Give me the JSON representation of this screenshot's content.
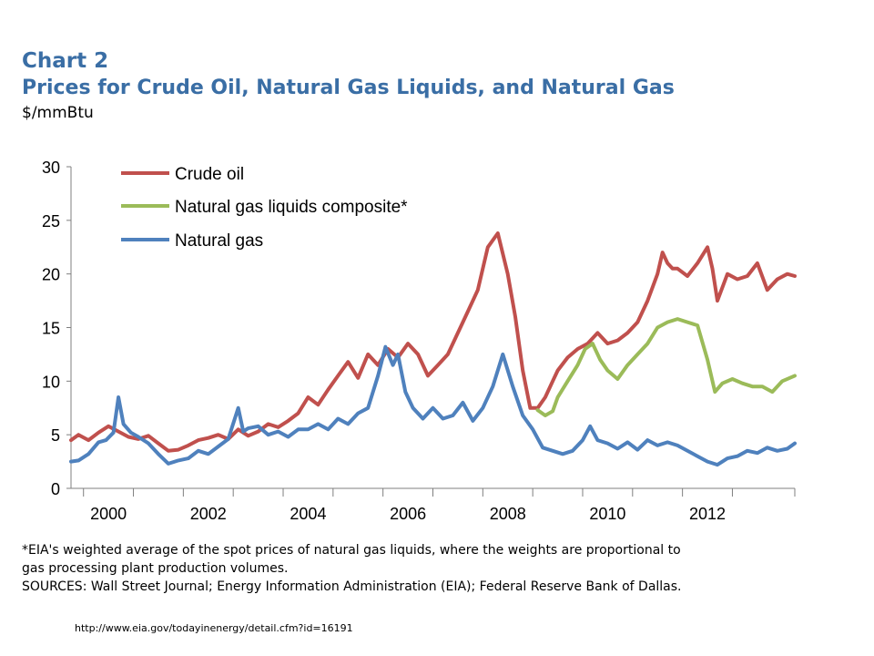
{
  "header": {
    "label": "Chart 2",
    "title": "Prices for Crude Oil, Natural Gas Liquids, and Natural Gas",
    "unit": "$/mmBtu"
  },
  "notes": {
    "footnote_line1": "*EIA's weighted average of the spot prices of natural gas liquids, where the weights are proportional to",
    "footnote_line2": "gas processing plant production volumes.",
    "sources": "SOURCES: Wall Street Journal; Energy Information Administration (EIA); Federal Reserve Bank of Dallas."
  },
  "url": "http://www.eia.gov/todayinenergy/detail.cfm?id=16191",
  "chart_data": {
    "type": "line",
    "title": "Prices for Crude Oil, Natural Gas Liquids, and Natural Gas",
    "ylabel": "$/mmBtu",
    "xlim": [
      1999.25,
      2013.75
    ],
    "ylim": [
      0,
      30
    ],
    "yticks": [
      0,
      5,
      10,
      15,
      20,
      25,
      30
    ],
    "xtick_labels": [
      "2000",
      "2002",
      "2004",
      "2006",
      "2008",
      "2010",
      "2012"
    ],
    "grid": false,
    "legend_position": "top-left",
    "series": [
      {
        "name": "Crude oil",
        "color": "#c0504d",
        "x": [
          1999.25,
          1999.4,
          1999.6,
          1999.8,
          2000.0,
          2000.2,
          2000.4,
          2000.6,
          2000.8,
          2001.0,
          2001.2,
          2001.4,
          2001.6,
          2001.8,
          2002.0,
          2002.2,
          2002.4,
          2002.6,
          2002.8,
          2003.0,
          2003.2,
          2003.4,
          2003.6,
          2003.8,
          2004.0,
          2004.2,
          2004.4,
          2004.6,
          2004.8,
          2005.0,
          2005.2,
          2005.4,
          2005.6,
          2005.8,
          2006.0,
          2006.2,
          2006.4,
          2006.6,
          2006.8,
          2007.0,
          2007.2,
          2007.4,
          2007.6,
          2007.8,
          2008.0,
          2008.15,
          2008.3,
          2008.45,
          2008.6,
          2008.75,
          2008.9,
          2009.0,
          2009.2,
          2009.4,
          2009.6,
          2009.8,
          2010.0,
          2010.2,
          2010.4,
          2010.6,
          2010.8,
          2011.0,
          2011.1,
          2011.2,
          2011.3,
          2011.4,
          2011.6,
          2011.8,
          2012.0,
          2012.1,
          2012.2,
          2012.4,
          2012.6,
          2012.8,
          2013.0,
          2013.2,
          2013.4,
          2013.6,
          2013.75
        ],
        "values": [
          4.5,
          5.0,
          4.5,
          5.2,
          5.8,
          5.3,
          4.8,
          4.6,
          4.9,
          4.2,
          3.5,
          3.6,
          4.0,
          4.5,
          4.7,
          5.0,
          4.6,
          5.5,
          4.9,
          5.3,
          6.0,
          5.7,
          6.3,
          7.0,
          8.5,
          7.8,
          9.2,
          10.5,
          11.8,
          10.3,
          12.5,
          11.5,
          13.0,
          12.2,
          13.5,
          12.5,
          10.5,
          11.5,
          12.5,
          14.5,
          16.5,
          18.5,
          22.5,
          23.8,
          20.0,
          16.0,
          11.0,
          7.5,
          7.5,
          8.5,
          10.0,
          11.0,
          12.2,
          13.0,
          13.5,
          14.5,
          13.5,
          13.8,
          14.5,
          15.5,
          17.5,
          20.0,
          22.0,
          21.0,
          20.5,
          20.5,
          19.8,
          21.0,
          22.5,
          20.5,
          17.5,
          20.0,
          19.5,
          19.8,
          21.0,
          18.5,
          19.5,
          20.0,
          19.8
        ]
      },
      {
        "name": "Natural gas liquids composite*",
        "color": "#9bbb59",
        "x": [
          2008.6,
          2008.75,
          2008.9,
          2009.0,
          2009.2,
          2009.4,
          2009.55,
          2009.7,
          2009.85,
          2010.0,
          2010.2,
          2010.4,
          2010.6,
          2010.8,
          2011.0,
          2011.2,
          2011.4,
          2011.6,
          2011.8,
          2012.0,
          2012.15,
          2012.3,
          2012.5,
          2012.7,
          2012.9,
          2013.1,
          2013.3,
          2013.5,
          2013.75
        ],
        "values": [
          7.3,
          6.8,
          7.2,
          8.5,
          10.0,
          11.5,
          13.0,
          13.5,
          12.0,
          11.0,
          10.2,
          11.5,
          12.5,
          13.5,
          15.0,
          15.5,
          15.8,
          15.5,
          15.2,
          12.0,
          9.0,
          9.8,
          10.2,
          9.8,
          9.5,
          9.5,
          9.0,
          10.0,
          10.5
        ]
      },
      {
        "name": "Natural gas",
        "color": "#4f81bd",
        "x": [
          1999.25,
          1999.4,
          1999.6,
          1999.8,
          1999.95,
          2000.1,
          2000.2,
          2000.3,
          2000.45,
          2000.6,
          2000.8,
          2001.0,
          2001.2,
          2001.4,
          2001.6,
          2001.8,
          2002.0,
          2002.2,
          2002.4,
          2002.6,
          2002.7,
          2002.8,
          2003.0,
          2003.2,
          2003.4,
          2003.6,
          2003.8,
          2004.0,
          2004.2,
          2004.4,
          2004.6,
          2004.8,
          2005.0,
          2005.2,
          2005.4,
          2005.55,
          2005.7,
          2005.8,
          2005.95,
          2006.1,
          2006.3,
          2006.5,
          2006.7,
          2006.9,
          2007.1,
          2007.3,
          2007.5,
          2007.7,
          2007.9,
          2008.1,
          2008.3,
          2008.5,
          2008.7,
          2008.9,
          2009.1,
          2009.3,
          2009.5,
          2009.65,
          2009.8,
          2010.0,
          2010.2,
          2010.4,
          2010.6,
          2010.8,
          2011.0,
          2011.2,
          2011.4,
          2011.6,
          2011.8,
          2012.0,
          2012.2,
          2012.4,
          2012.6,
          2012.8,
          2013.0,
          2013.2,
          2013.4,
          2013.6,
          2013.75
        ],
        "values": [
          2.5,
          2.6,
          3.2,
          4.3,
          4.5,
          5.2,
          8.5,
          6.0,
          5.2,
          4.8,
          4.2,
          3.2,
          2.3,
          2.6,
          2.8,
          3.5,
          3.2,
          3.9,
          4.6,
          7.5,
          5.3,
          5.6,
          5.8,
          5.0,
          5.3,
          4.8,
          5.5,
          5.5,
          6.0,
          5.5,
          6.5,
          6.0,
          7.0,
          7.5,
          10.5,
          13.2,
          11.5,
          12.5,
          9.0,
          7.5,
          6.5,
          7.5,
          6.5,
          6.8,
          8.0,
          6.3,
          7.5,
          9.5,
          12.5,
          9.5,
          6.8,
          5.5,
          3.8,
          3.5,
          3.2,
          3.5,
          4.5,
          5.8,
          4.5,
          4.2,
          3.7,
          4.3,
          3.6,
          4.5,
          4.0,
          4.3,
          4.0,
          3.5,
          3.0,
          2.5,
          2.2,
          2.8,
          3.0,
          3.5,
          3.3,
          3.8,
          3.5,
          3.7,
          4.2
        ]
      }
    ]
  }
}
